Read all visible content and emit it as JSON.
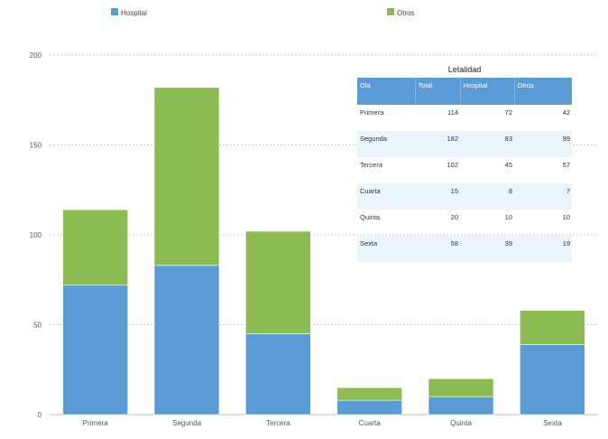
{
  "chart_data": {
    "type": "bar",
    "stacked": true,
    "categories": [
      "Primera",
      "Segunda",
      "Tercera",
      "Cuarta",
      "Quinta",
      "Sexta"
    ],
    "series": [
      {
        "name": "Hospital",
        "color": "#5b9bd5",
        "values": [
          72,
          83,
          45,
          8,
          10,
          39
        ]
      },
      {
        "name": "Otros",
        "color": "#8cbb52",
        "values": [
          42,
          99,
          57,
          7,
          10,
          19
        ]
      }
    ],
    "ylim": [
      0,
      200
    ],
    "yticks": [
      0,
      50,
      100,
      150,
      200
    ],
    "grid": true,
    "legend_position": "top"
  },
  "table": {
    "title": "Letalidad",
    "headers": [
      "Ola",
      "Total",
      "Hospital",
      "Otros"
    ],
    "rows": [
      [
        "Primera",
        "114",
        "72",
        "42"
      ],
      [
        "Segunda",
        "182",
        "83",
        "99"
      ],
      [
        "Tercera",
        "102",
        "45",
        "57"
      ],
      [
        "Cuarta",
        "15",
        "8",
        "7"
      ],
      [
        "Quinta",
        "20",
        "10",
        "10"
      ],
      [
        "Sexta",
        "58",
        "39",
        "19"
      ]
    ]
  }
}
